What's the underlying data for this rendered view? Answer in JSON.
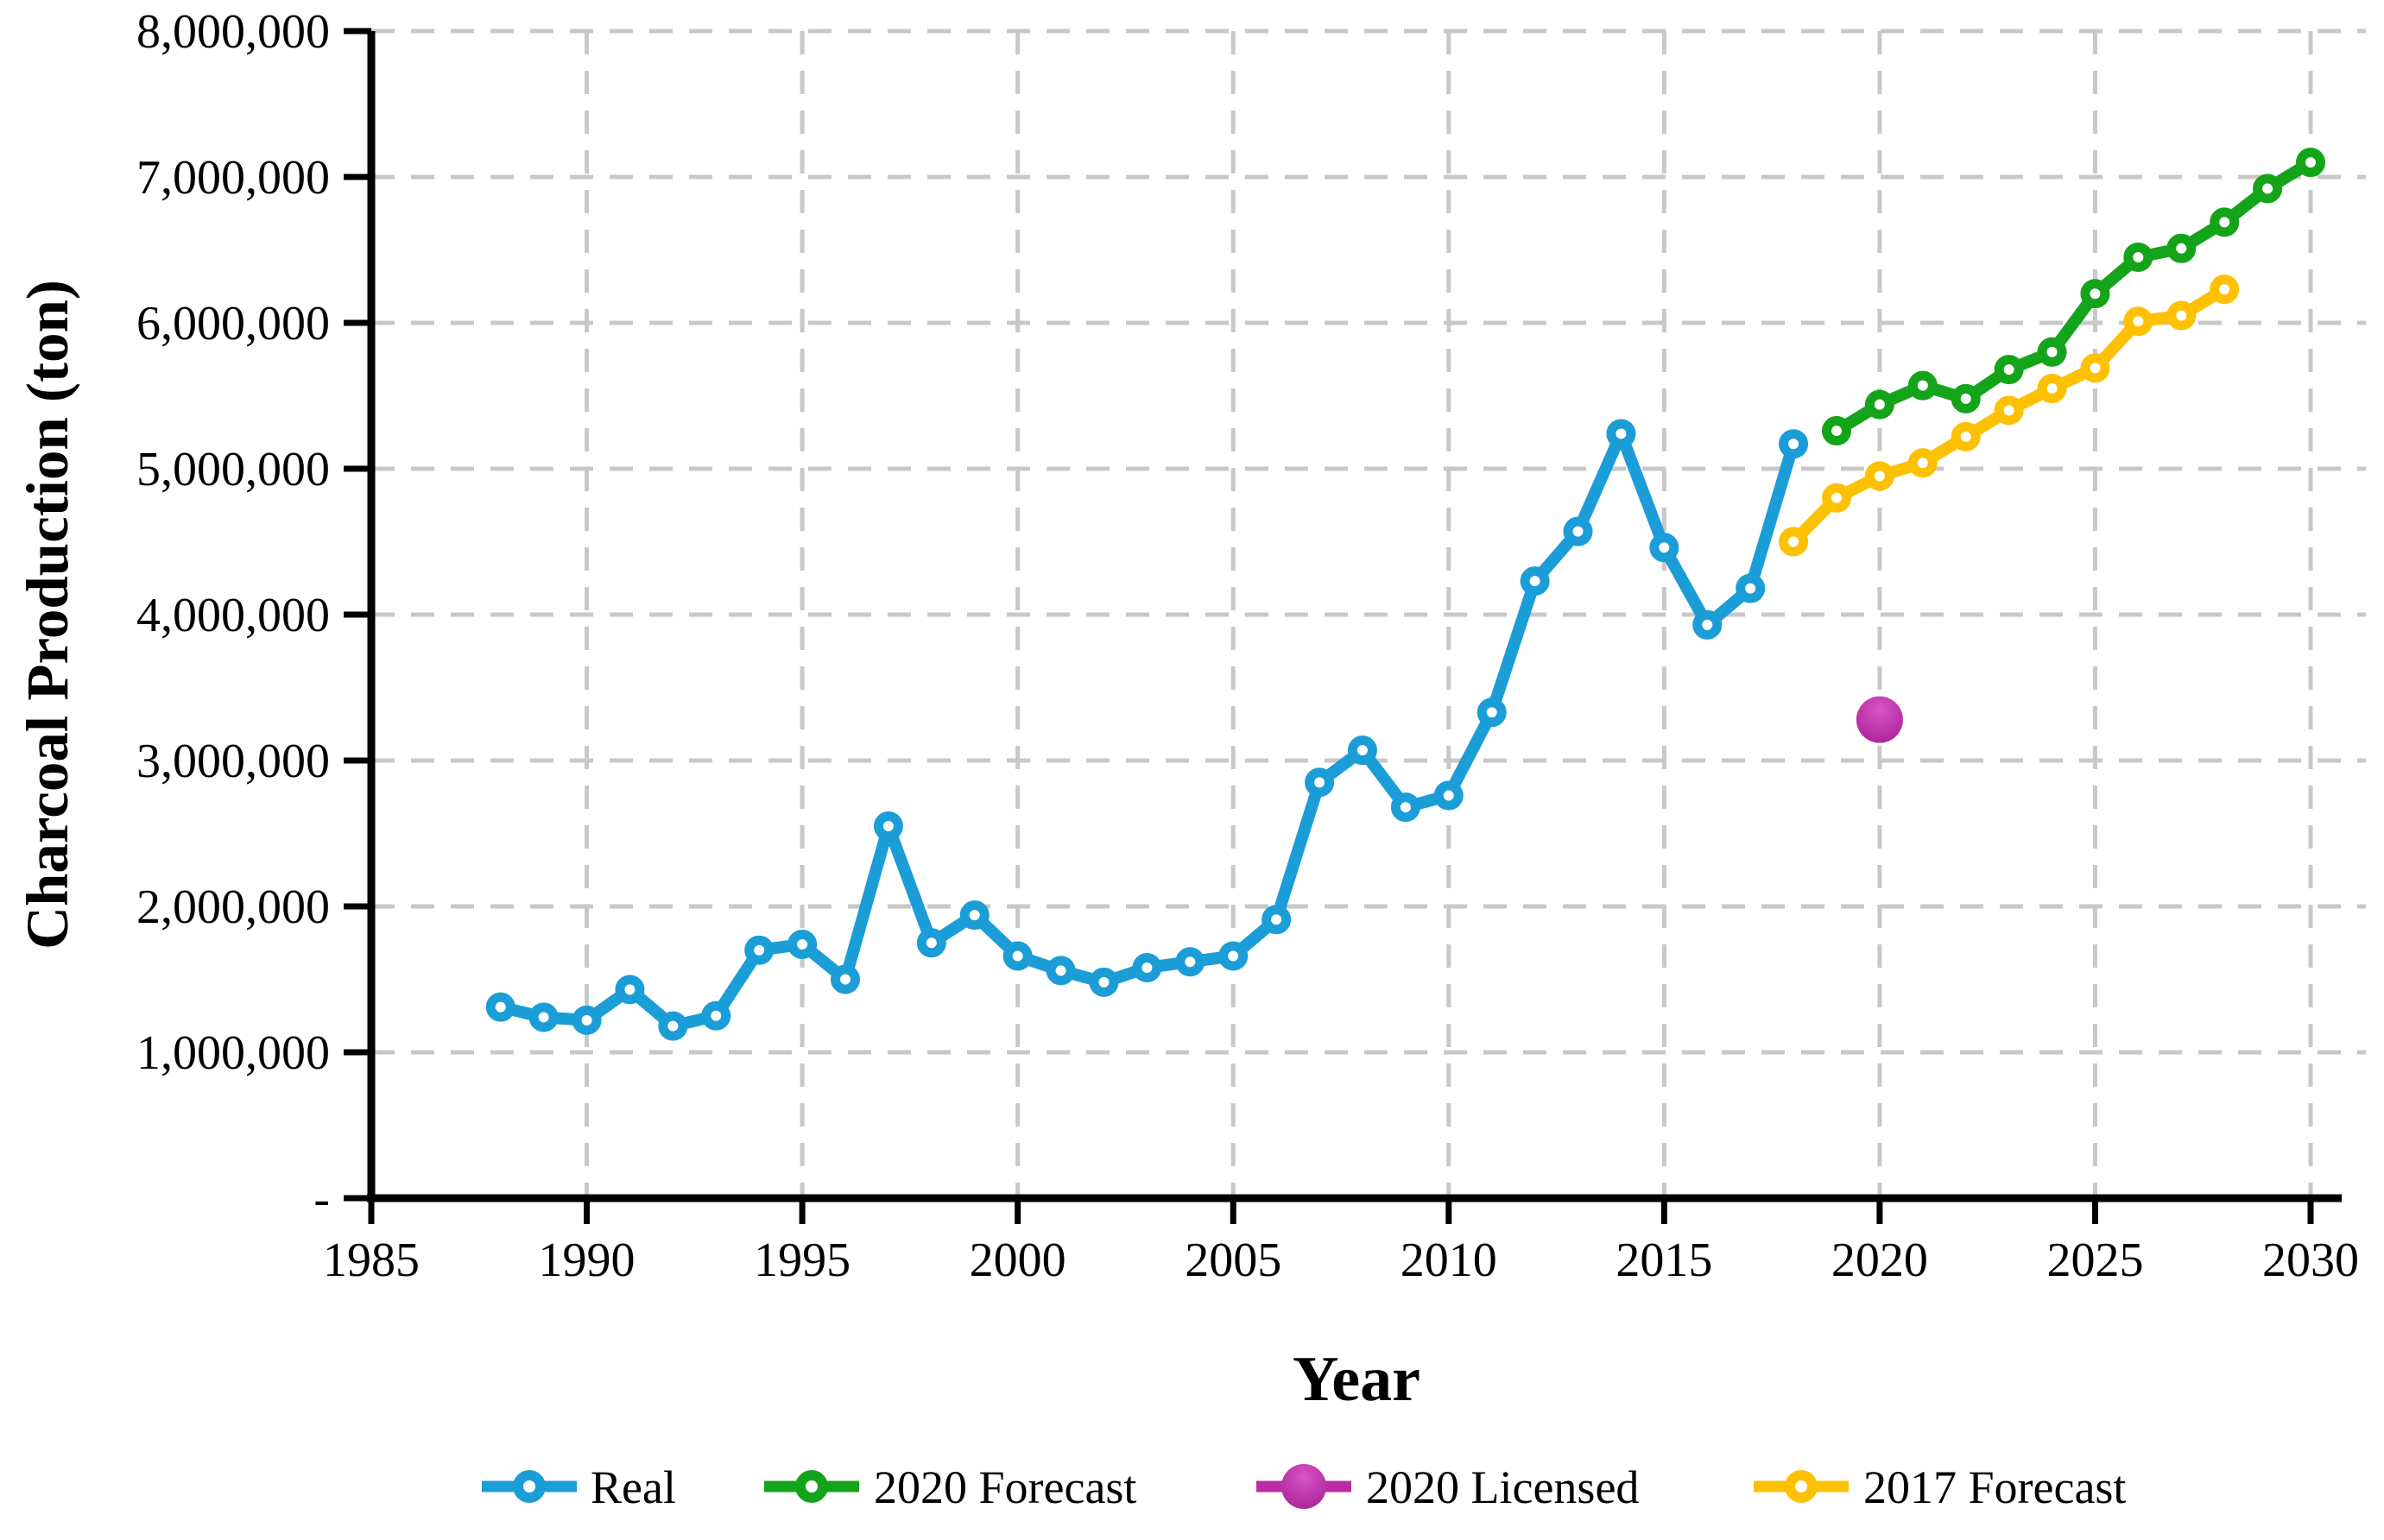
{
  "chart_data": {
    "type": "line",
    "title": "",
    "xlabel": "Year",
    "ylabel": "Charcoal Production (ton)",
    "xlim": [
      1985,
      2030
    ],
    "ylim": [
      0,
      8000000
    ],
    "grid": "dashed-both",
    "legend_position": "bottom-center",
    "x_axis": {
      "tick_values": [
        1985,
        1990,
        1995,
        2000,
        2005,
        2010,
        2015,
        2020,
        2025,
        2030
      ],
      "tick_labels": [
        "1985",
        "1990",
        "1995",
        "2000",
        "2005",
        "2010",
        "2015",
        "2020",
        "2025",
        "2030"
      ]
    },
    "y_axis": {
      "tick_values": [
        0,
        1000000,
        2000000,
        3000000,
        4000000,
        5000000,
        6000000,
        7000000,
        8000000
      ],
      "tick_labels": [
        "-",
        "1,000,000",
        "2,000,000",
        "3,000,000",
        "4,000,000",
        "5,000,000",
        "6,000,000",
        "7,000,000",
        "8,000,000"
      ]
    },
    "series": [
      {
        "name": "Real",
        "color": "#1b9dd8",
        "marker": "ring",
        "x": [
          1988,
          1989,
          1990,
          1991,
          1992,
          1993,
          1994,
          1995,
          1996,
          1997,
          1998,
          1999,
          2000,
          2001,
          2002,
          2003,
          2004,
          2005,
          2006,
          2007,
          2008,
          2009,
          2010,
          2011,
          2012,
          2013,
          2014,
          2015,
          2016,
          2017,
          2018
        ],
        "values": [
          1310000,
          1240000,
          1220000,
          1430000,
          1180000,
          1250000,
          1700000,
          1740000,
          1500000,
          2550000,
          1750000,
          1940000,
          1660000,
          1560000,
          1480000,
          1580000,
          1620000,
          1660000,
          1910000,
          2850000,
          3070000,
          2680000,
          2760000,
          3330000,
          4230000,
          4570000,
          5240000,
          4460000,
          3930000,
          4180000,
          5170000
        ]
      },
      {
        "name": "2020 Forecast",
        "color": "#14a41a",
        "marker": "ring",
        "x": [
          2019,
          2020,
          2021,
          2022,
          2023,
          2024,
          2025,
          2026,
          2027,
          2028,
          2029,
          2030
        ],
        "values": [
          5260000,
          5440000,
          5570000,
          5480000,
          5680000,
          5800000,
          6200000,
          6450000,
          6510000,
          6690000,
          6920000,
          7100000
        ]
      },
      {
        "name": "2020 Licensed",
        "color": "#bb2ba6",
        "marker": "ball",
        "gradient": [
          "#d855c6",
          "#a81e96"
        ],
        "x": [
          2020
        ],
        "values": [
          3280000
        ]
      },
      {
        "name": "2017 Forecast",
        "color": "#fec101",
        "marker": "ring",
        "x": [
          2018,
          2019,
          2020,
          2021,
          2022,
          2023,
          2024,
          2025,
          2026,
          2027,
          2028
        ],
        "values": [
          4500000,
          4800000,
          4950000,
          5040000,
          5220000,
          5400000,
          5550000,
          5690000,
          6010000,
          6050000,
          6230000
        ]
      }
    ],
    "colors": {
      "axis": "#000000",
      "gridline": "#c8c8c8",
      "background": "#ffffff"
    }
  },
  "legend": {
    "items": [
      "Real",
      "2020 Forecast",
      "2020 Licensed",
      "2017 Forecast"
    ]
  }
}
